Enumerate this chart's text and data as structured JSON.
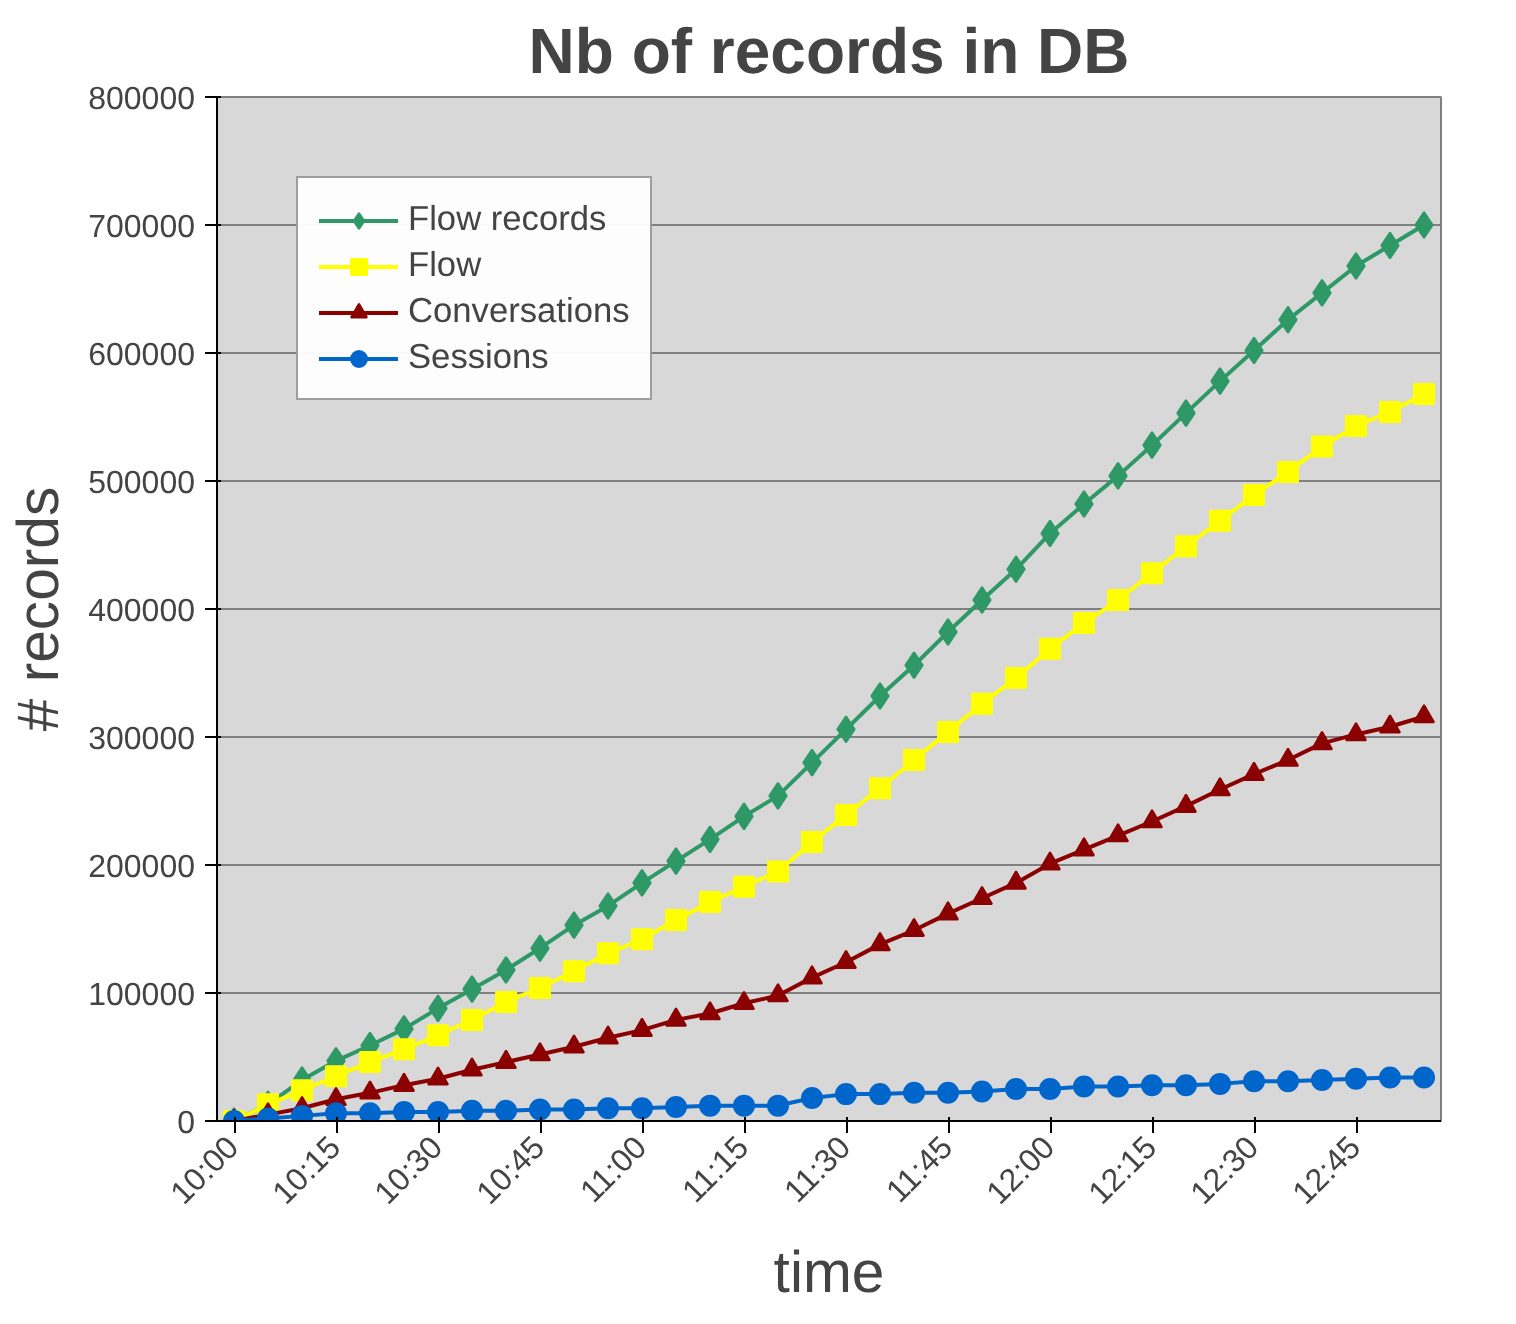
{
  "chart_data": {
    "type": "line",
    "title": "Nb of records in DB",
    "xlabel": "time",
    "ylabel": "# records",
    "x": [
      10,
      10.0833,
      10.1667,
      10.25,
      10.3333,
      10.4167,
      10.5,
      10.5833,
      10.6667,
      10.75,
      10.8333,
      10.9167,
      11,
      11.0833,
      11.1667,
      11.25,
      11.3333,
      11.4167,
      11.5,
      11.5833,
      11.6667,
      11.75,
      11.8333,
      11.9167,
      12,
      12.0833,
      12.1667,
      12.25,
      12.3333,
      12.4167,
      12.5,
      12.5833,
      12.6667,
      12.75,
      12.8333,
      12.9167
    ],
    "series": [
      {
        "name": "Flow records",
        "color": "#2e9966",
        "marker": "diamond",
        "values": [
          0,
          13000,
          32000,
          47000,
          59000,
          72000,
          88000,
          103000,
          118000,
          135000,
          153000,
          168000,
          186000,
          203000,
          220000,
          238000,
          254000,
          280000,
          306000,
          332000,
          356000,
          382000,
          407000,
          431000,
          459000,
          482000,
          504000,
          528000,
          553000,
          578000,
          602000,
          626000,
          647000,
          668000,
          684000,
          700000
        ]
      },
      {
        "name": "Flow",
        "color": "#ffff00",
        "marker": "square",
        "values": [
          0,
          13000,
          24000,
          35000,
          46000,
          56000,
          67000,
          79000,
          93000,
          104000,
          117000,
          131000,
          142000,
          157000,
          171000,
          183000,
          195000,
          218000,
          239000,
          260000,
          282000,
          304000,
          326000,
          346000,
          369000,
          389000,
          407000,
          428000,
          449000,
          469000,
          489000,
          507000,
          527000,
          543000,
          554000,
          568000
        ]
      },
      {
        "name": "Conversations",
        "color": "#8b0000",
        "marker": "triangle",
        "values": [
          0,
          5000,
          10000,
          17000,
          22000,
          28000,
          33000,
          40000,
          46000,
          52000,
          58000,
          65000,
          71000,
          79000,
          84000,
          92000,
          98000,
          112000,
          124000,
          138000,
          149000,
          162000,
          174000,
          186000,
          201000,
          212000,
          223000,
          234000,
          246000,
          259000,
          271000,
          282000,
          295000,
          302000,
          308000,
          316000
        ]
      },
      {
        "name": "Sessions",
        "color": "#0066cc",
        "marker": "circle",
        "values": [
          0,
          2000,
          4000,
          6000,
          6000,
          7000,
          7000,
          8000,
          8000,
          9000,
          9000,
          10000,
          10000,
          11000,
          12000,
          12000,
          12000,
          18000,
          21000,
          21000,
          22000,
          22000,
          23000,
          25000,
          25000,
          27000,
          27000,
          28000,
          28000,
          29000,
          31000,
          31000,
          32000,
          33000,
          34000,
          34000
        ]
      }
    ],
    "xlim": [
      9.9583,
      12.9583
    ],
    "xticks": [
      {
        "value": 10,
        "label": "10:00"
      },
      {
        "value": 10.25,
        "label": "10:15"
      },
      {
        "value": 10.5,
        "label": "10:30"
      },
      {
        "value": 10.75,
        "label": "10:45"
      },
      {
        "value": 11,
        "label": "11:00"
      },
      {
        "value": 11.25,
        "label": "11:15"
      },
      {
        "value": 11.5,
        "label": "11:30"
      },
      {
        "value": 11.75,
        "label": "11:45"
      },
      {
        "value": 12,
        "label": "12:00"
      },
      {
        "value": 12.25,
        "label": "12:15"
      },
      {
        "value": 12.5,
        "label": "12:30"
      },
      {
        "value": 12.75,
        "label": "12:45"
      }
    ],
    "ylim": [
      0,
      800000
    ],
    "yticks": [
      0,
      100000,
      200000,
      300000,
      400000,
      500000,
      600000,
      700000,
      800000
    ],
    "grid": "y",
    "legend": "top left",
    "line_style": "solid"
  }
}
